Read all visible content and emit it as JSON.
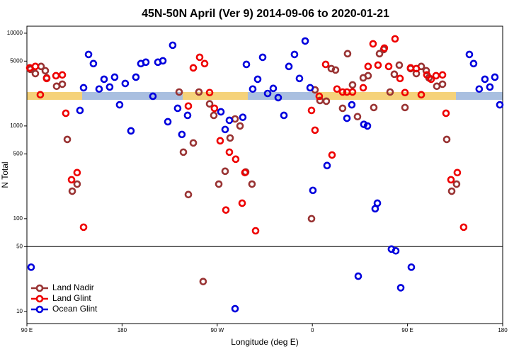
{
  "chart_data": {
    "type": "scatter",
    "title": "45N-50N April (Ver 9)   2014-09-06 to 2020-01-21",
    "x_label": "Longitude (deg E)",
    "y_label": "N Total",
    "log_y": true,
    "hline": 50,
    "legend": "bottom left",
    "xlim": [
      90,
      540
    ],
    "xticks": [
      {
        "value": 90,
        "label": "90 E"
      },
      {
        "value": 180,
        "label": "180"
      },
      {
        "value": 270,
        "label": "90 W"
      },
      {
        "value": 360,
        "label": "0"
      },
      {
        "value": 450,
        "label": "90 E"
      },
      {
        "value": 540,
        "label": "180"
      }
    ],
    "ylim": [
      7.4,
      11900
    ],
    "yticks": [
      10,
      50,
      100,
      500,
      1000,
      5000,
      10000
    ],
    "series": [
      {
        "name": "Land Nadir",
        "color": "#993333",
        "x": [
          93.3,
          98.0,
          103.4,
          107.4,
          108.7,
          118.1,
          123.5,
          128.2,
          132.9,
          137.5,
          234.0,
          238.0,
          242.7,
          247.4,
          252.7,
          256.7,
          262.8,
          266.8,
          271.5,
          277.5,
          282.2,
          286.9,
          291.6,
          296.9,
          302.9,
          359.2,
          362.5,
          367.2,
          373.2,
          377.9,
          381.9,
          388.6,
          393.3,
          398.0,
          402.7,
          408.1,
          412.7,
          418.1,
          423.5,
          427.5,
          433.5,
          437.5,
          442.2,
          447.6,
          452.9,
          458.3,
          463.0,
          467.7,
          470.3,
          477.7,
          483.1,
          487.1,
          491.8,
          496.4
        ],
        "values": [
          4080,
          3670,
          4380,
          3940,
          3300,
          2680,
          2820,
          716,
          198,
          236,
          2320,
          522,
          182,
          656,
          2320,
          21,
          1730,
          1300,
          236,
          325,
          742,
          1190,
          1000,
          319,
          236,
          100,
          2450,
          1880,
          1850,
          4150,
          4010,
          1550,
          6010,
          2770,
          1260,
          3300,
          3480,
          1580,
          6010,
          6670,
          2320,
          3610,
          4530,
          1580,
          4150,
          3670,
          4380,
          3940,
          3300,
          2680,
          2820,
          716,
          198,
          236
        ]
      },
      {
        "name": "Land Glint",
        "color": "#ee0000",
        "x": [
          92.7,
          98.0,
          102.7,
          108.7,
          117.5,
          123.5,
          126.8,
          132.2,
          137.5,
          143.6,
          242.7,
          247.4,
          253.4,
          258.1,
          262.8,
          267.4,
          272.8,
          278.2,
          281.5,
          287.5,
          293.6,
          296.2,
          306.3,
          359.2,
          362.5,
          366.5,
          372.6,
          378.6,
          383.3,
          388.6,
          392.7,
          398.0,
          408.1,
          412.7,
          417.4,
          422.1,
          428.1,
          432.2,
          438.2,
          442.9,
          447.6,
          452.9,
          458.3,
          463.0,
          468.3,
          472.3,
          477.0,
          483.1,
          486.4,
          491.1,
          497.1,
          503.1
        ],
        "values": [
          4230,
          4380,
          2170,
          3250,
          3480,
          3550,
          1370,
          263,
          314,
          81,
          1640,
          4230,
          5500,
          4700,
          2290,
          1550,
          692,
          124,
          522,
          438,
          147,
          314,
          74,
          1470,
          900,
          2090,
          4610,
          486,
          2500,
          2320,
          2320,
          2320,
          2580,
          4380,
          7680,
          4530,
          6910,
          4380,
          8690,
          3250,
          2290,
          4230,
          4150,
          2170,
          3550,
          3190,
          3480,
          3550,
          1370,
          263,
          314,
          81
        ]
      },
      {
        "name": "Ocean Glint",
        "color": "#0000dd",
        "x": [
          94.0,
          140.2,
          143.6,
          148.3,
          152.9,
          158.3,
          163.0,
          168.3,
          173.0,
          177.7,
          183.0,
          188.4,
          193.1,
          197.8,
          202.5,
          209.2,
          213.9,
          218.6,
          223.3,
          227.9,
          232.6,
          236.6,
          242.0,
          273.5,
          277.5,
          281.5,
          286.9,
          294.2,
          297.6,
          303.6,
          308.3,
          313.0,
          317.7,
          323.0,
          327.7,
          333.1,
          337.8,
          343.1,
          347.8,
          353.2,
          357.9,
          360.5,
          373.9,
          392.7,
          397.3,
          403.4,
          408.7,
          412.1,
          419.4,
          421.5,
          434.8,
          438.9,
          443.6,
          453.6,
          508.5,
          512.5,
          517.8,
          523.2,
          527.9,
          532.6,
          537.3
        ],
        "values": [
          30,
          1470,
          2580,
          5900,
          4700,
          2500,
          3190,
          2630,
          3360,
          1690,
          2870,
          885,
          3360,
          4700,
          4870,
          2090,
          4870,
          5040,
          1110,
          7420,
          1550,
          810,
          1300,
          1420,
          916,
          1150,
          10.7,
          1240,
          4610,
          2500,
          3190,
          5500,
          2240,
          2540,
          2020,
          1300,
          4380,
          5900,
          3250,
          8240,
          2580,
          202,
          374,
          1210,
          1690,
          24,
          1040,
          1000,
          128,
          147,
          47,
          45,
          18,
          30,
          5900,
          4700,
          2500,
          3190,
          2630,
          3360,
          1690
        ]
      }
    ]
  }
}
